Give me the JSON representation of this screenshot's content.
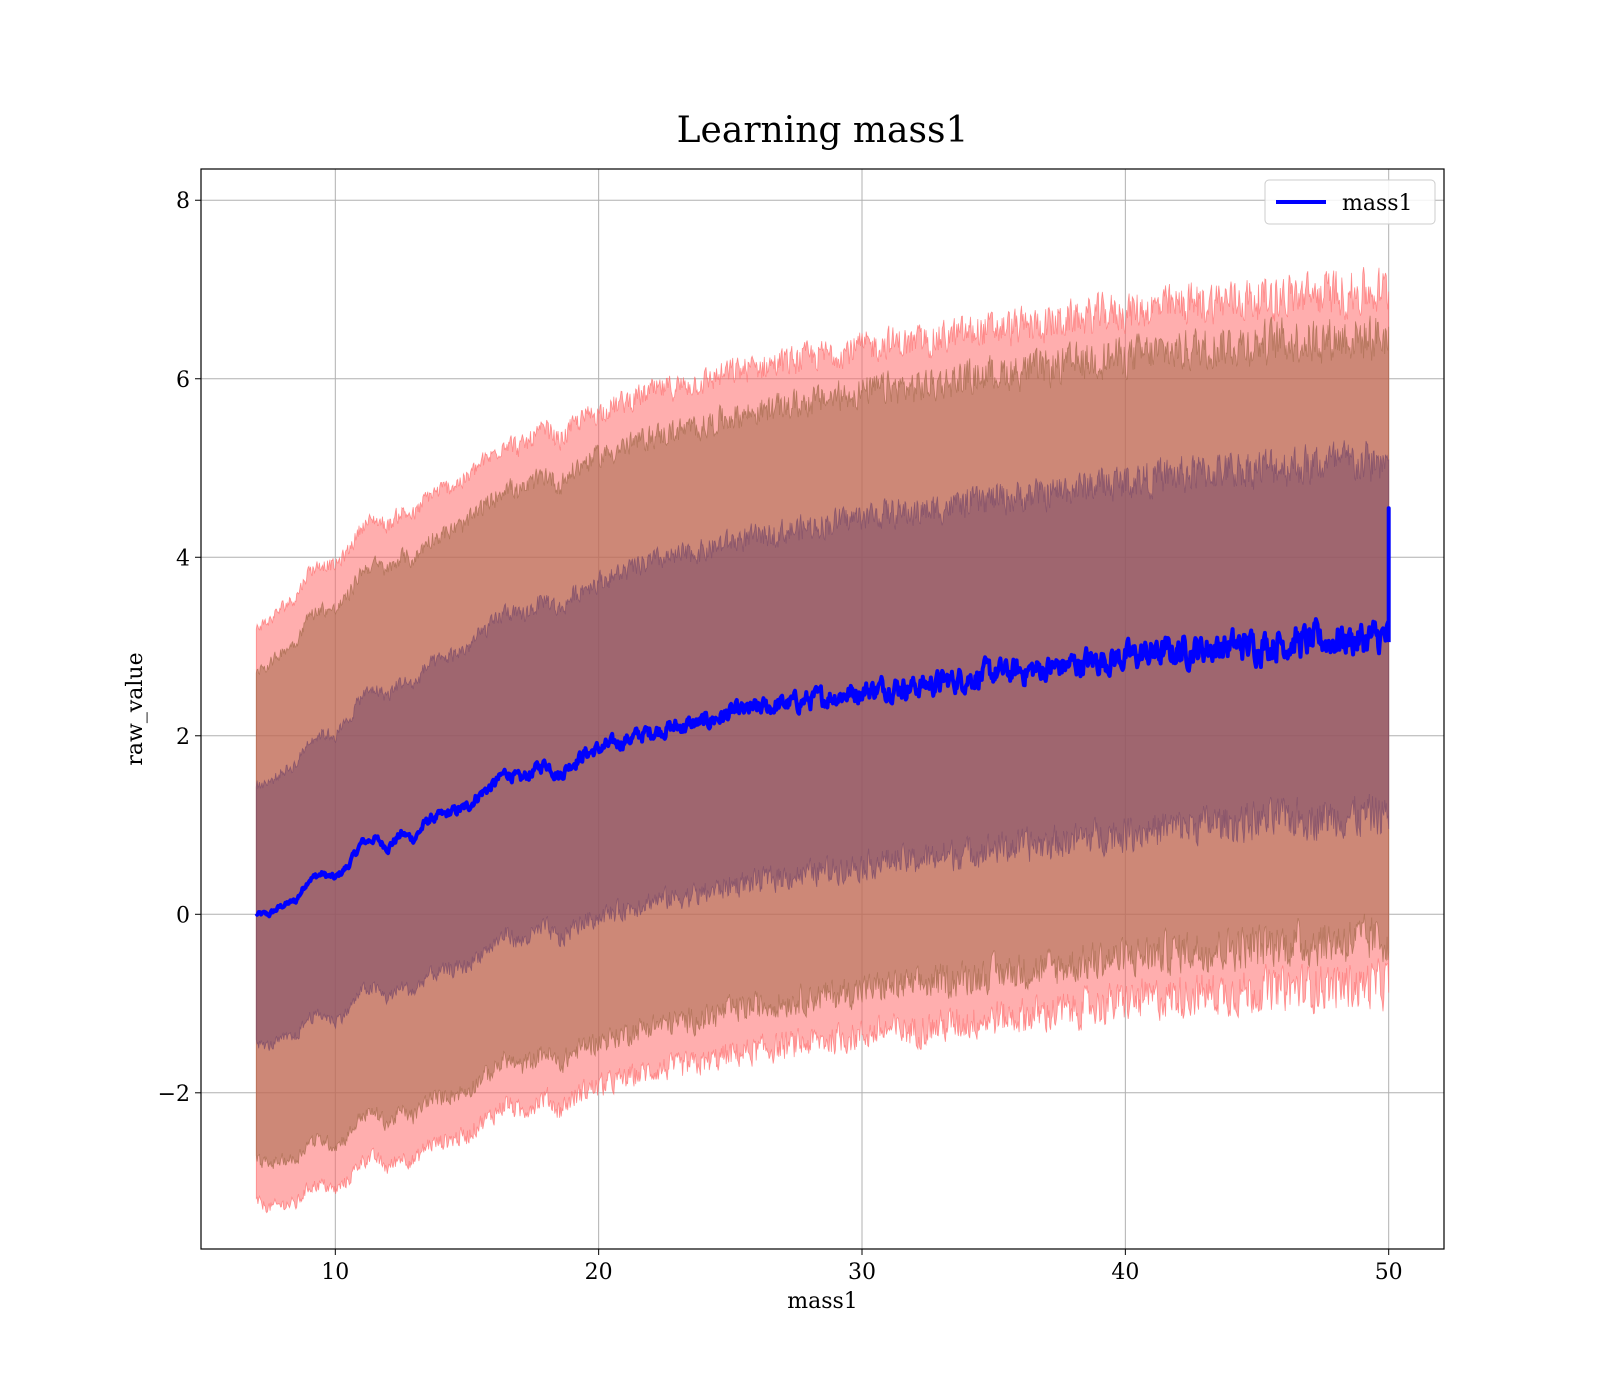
{
  "chart_data": {
    "type": "line",
    "title": "Learning mass1",
    "xlabel": "mass1",
    "ylabel": "raw_value",
    "xlim": [
      4.9,
      52.1
    ],
    "ylim": [
      -3.75,
      8.35
    ],
    "xticks": [
      10,
      20,
      30,
      40,
      50
    ],
    "yticks": [
      -2,
      0,
      2,
      4,
      6,
      8
    ],
    "ytick_labels": [
      "−2",
      "0",
      "2",
      "4",
      "6",
      "8"
    ],
    "grid": true,
    "legend_position": "top-right",
    "colors": {
      "line": "#0000ff",
      "band_outer": "#ff6b6b",
      "band_middle": "#a46a4a",
      "band_inner": "#7a4a6a"
    },
    "series": [
      {
        "name": "mass1",
        "x": [
          7,
          7.5,
          8,
          8.5,
          9,
          9.5,
          10,
          10.5,
          11,
          11.5,
          12,
          12.5,
          13,
          13.5,
          14,
          14.5,
          15,
          15.5,
          16,
          16.5,
          17,
          17.5,
          18,
          18.5,
          19,
          19.5,
          20,
          21,
          22,
          23,
          24,
          25,
          26,
          27,
          28,
          29,
          30,
          31,
          32,
          33,
          34,
          35,
          36,
          37,
          38,
          39,
          40,
          41,
          42,
          43,
          44,
          45,
          46,
          47,
          48,
          49,
          50
        ],
        "y": [
          0.0,
          0.0,
          0.1,
          0.15,
          0.4,
          0.45,
          0.4,
          0.55,
          0.8,
          0.85,
          0.75,
          0.9,
          0.85,
          1.05,
          1.1,
          1.15,
          1.2,
          1.35,
          1.45,
          1.6,
          1.5,
          1.6,
          1.7,
          1.55,
          1.7,
          1.8,
          1.85,
          1.95,
          2.05,
          2.1,
          2.15,
          2.25,
          2.3,
          2.35,
          2.4,
          2.45,
          2.5,
          2.55,
          2.55,
          2.6,
          2.65,
          2.7,
          2.72,
          2.75,
          2.8,
          2.85,
          2.88,
          2.92,
          2.95,
          2.98,
          3.0,
          3.02,
          3.05,
          3.05,
          3.08,
          3.08,
          3.1
        ]
      }
    ],
    "bands": {
      "x": [
        7,
        8,
        9,
        10,
        11,
        12,
        13,
        14,
        15,
        16,
        17,
        18,
        19,
        20,
        22,
        24,
        26,
        28,
        30,
        32,
        34,
        36,
        38,
        40,
        42,
        44,
        46,
        48,
        50
      ],
      "inner_halfwidth": [
        1.45,
        1.5,
        1.55,
        1.6,
        1.65,
        1.7,
        1.72,
        1.75,
        1.78,
        1.8,
        1.82,
        1.84,
        1.86,
        1.88,
        1.9,
        1.92,
        1.93,
        1.94,
        1.95,
        1.95,
        1.96,
        1.96,
        1.97,
        1.97,
        1.97,
        1.98,
        1.98,
        1.98,
        1.98
      ],
      "middle_halfwidth": [
        2.75,
        2.85,
        2.95,
        3.0,
        3.05,
        3.1,
        3.12,
        3.15,
        3.18,
        3.2,
        3.22,
        3.24,
        3.26,
        3.28,
        3.3,
        3.32,
        3.33,
        3.34,
        3.35,
        3.35,
        3.36,
        3.36,
        3.37,
        3.37,
        3.37,
        3.38,
        3.38,
        3.38,
        3.38
      ],
      "outer_halfwidth": [
        3.22,
        3.35,
        3.45,
        3.5,
        3.55,
        3.6,
        3.62,
        3.65,
        3.68,
        3.7,
        3.72,
        3.74,
        3.76,
        3.78,
        3.8,
        3.82,
        3.83,
        3.84,
        3.85,
        3.85,
        3.86,
        3.86,
        3.87,
        3.87,
        3.87,
        3.88,
        3.88,
        3.88,
        3.88
      ]
    }
  }
}
